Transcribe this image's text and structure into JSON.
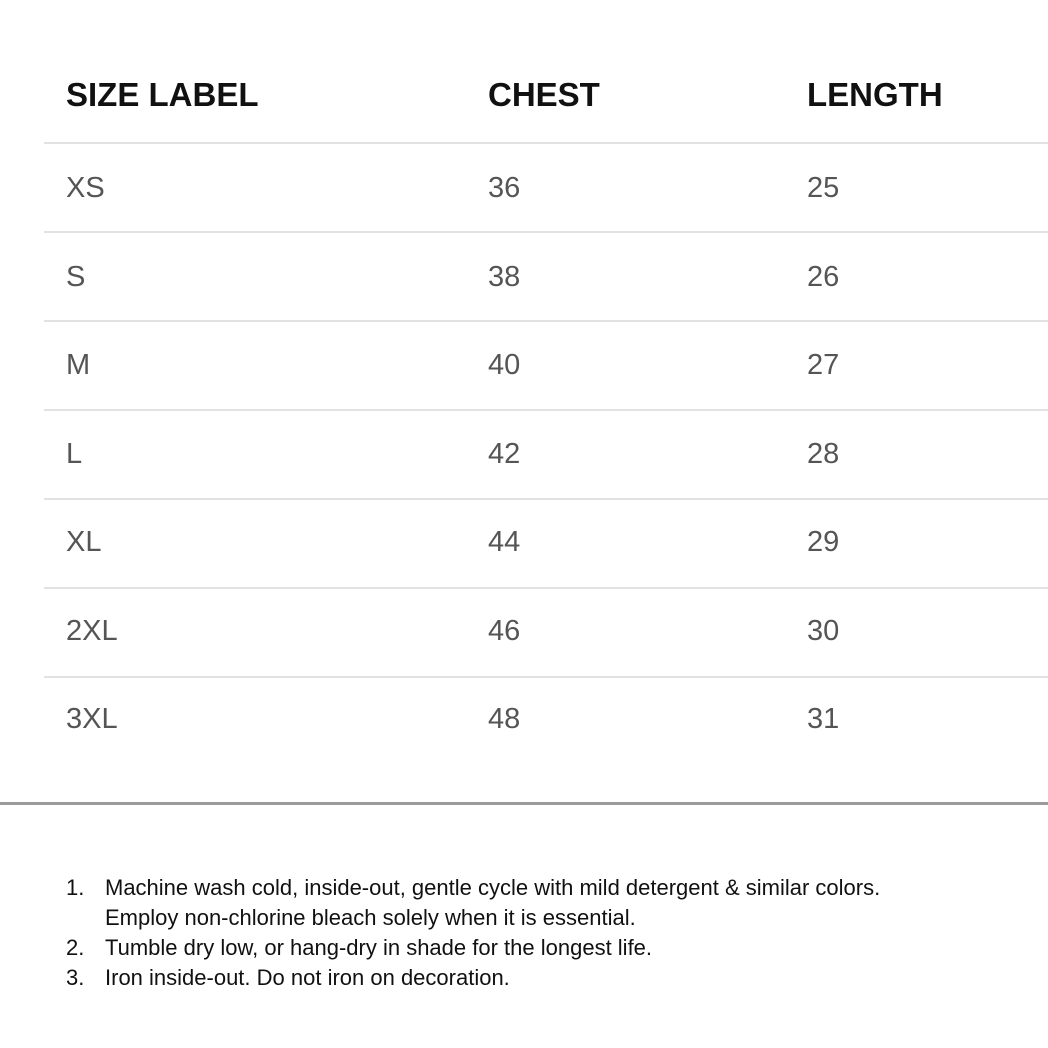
{
  "table": {
    "headers": [
      "SIZE LABEL",
      "CHEST",
      "LENGTH"
    ],
    "rows": [
      [
        "XS",
        "36",
        "25"
      ],
      [
        "S",
        "38",
        "26"
      ],
      [
        "M",
        "40",
        "27"
      ],
      [
        "L",
        "42",
        "28"
      ],
      [
        "XL",
        "44",
        "29"
      ],
      [
        "2XL",
        "46",
        "30"
      ],
      [
        "3XL",
        "48",
        "31"
      ]
    ]
  },
  "care_instructions": [
    {
      "number": "1.",
      "lines": [
        "Machine wash cold, inside-out, gentle cycle with mild detergent & similar colors.",
        "Employ non-chlorine bleach solely when it is essential."
      ]
    },
    {
      "number": "2.",
      "lines": [
        "Tumble dry low, or hang-dry in shade for the longest life."
      ]
    },
    {
      "number": "3.",
      "lines": [
        "Iron inside-out. Do not iron on decoration."
      ]
    }
  ]
}
